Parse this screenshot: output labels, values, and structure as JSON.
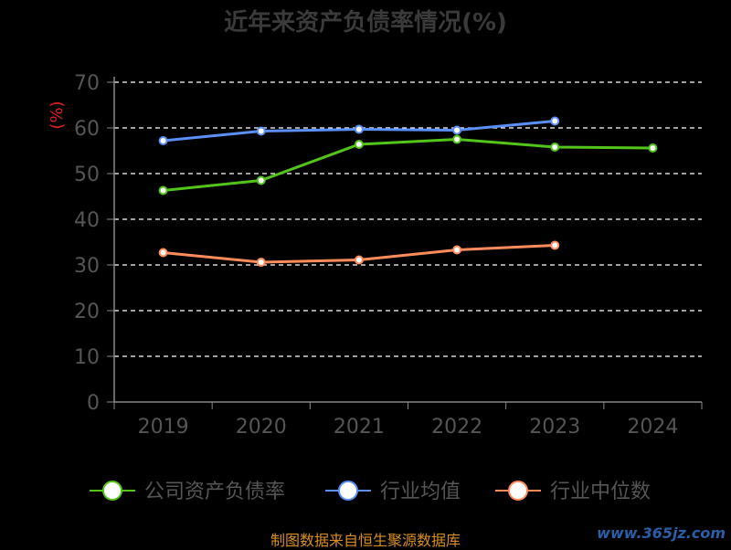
{
  "chart_data": {
    "type": "line",
    "title": "近年来资产负债率情况(%)",
    "ylabel": "(%)",
    "ylim": [
      0,
      70
    ],
    "yticks": [
      0,
      10,
      20,
      30,
      40,
      50,
      60,
      70
    ],
    "categories": [
      "2019",
      "2020",
      "2021",
      "2022",
      "2023",
      "2024"
    ],
    "grid": true,
    "legend_position": "bottom",
    "series": [
      {
        "name": "公司资产负债率",
        "color": "#52c41a",
        "values": [
          46.3,
          48.5,
          56.4,
          57.5,
          55.8,
          55.6
        ]
      },
      {
        "name": "行业均值",
        "color": "#5b8ff9",
        "values": [
          57.2,
          59.3,
          59.7,
          59.5,
          61.5,
          null
        ]
      },
      {
        "name": "行业中位数",
        "color": "#ff8c5a",
        "values": [
          32.7,
          30.6,
          31.1,
          33.3,
          34.3,
          null
        ]
      }
    ]
  },
  "footer": {
    "source": "制图数据来自恒生聚源数据库"
  },
  "watermark": "www.365jz.com",
  "colors": {
    "background": "#000000",
    "ylabel": "#e02020",
    "axis": "#888888",
    "tick_text": "#555555"
  }
}
